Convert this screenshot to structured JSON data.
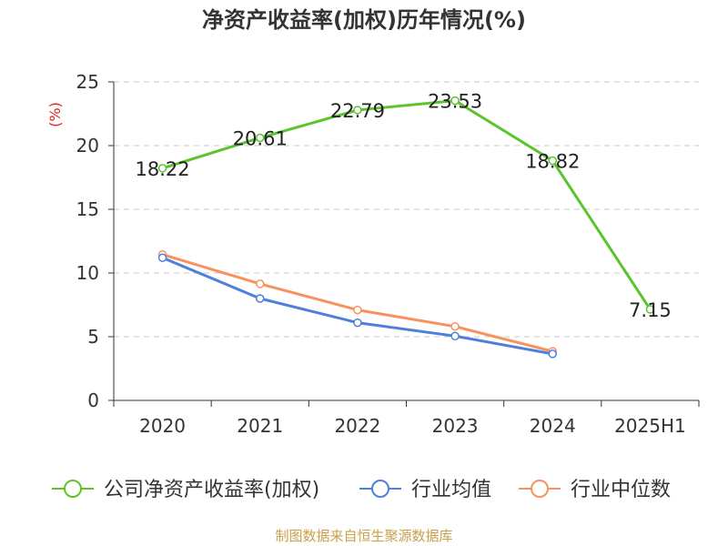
{
  "chart_data": {
    "type": "line",
    "title": "净资产收益率(加权)历年情况(%)",
    "ylabel": "(%)",
    "ylim": [
      0,
      25
    ],
    "yticks": [
      0,
      5,
      10,
      15,
      20,
      25
    ],
    "grid": true,
    "legend_position": "bottom",
    "categories": [
      "2020",
      "2021",
      "2022",
      "2023",
      "2024",
      "2025H1"
    ],
    "series": [
      {
        "name": "公司净资产收益率(加权)",
        "color": "#5cc42b",
        "values": [
          18.22,
          20.61,
          22.79,
          23.53,
          18.82,
          7.15
        ],
        "labels": [
          "18.22",
          "20.61",
          "22.79",
          "23.53",
          "18.82",
          "7.15"
        ]
      },
      {
        "name": "行业均值",
        "color": "#4f7fdc",
        "values": [
          11.2,
          8.0,
          6.1,
          5.05,
          3.65,
          null
        ]
      },
      {
        "name": "行业中位数",
        "color": "#f7915e",
        "values": [
          11.45,
          9.15,
          7.1,
          5.8,
          3.85,
          null
        ]
      }
    ],
    "source": "制图数据来自恒生聚源数据库",
    "colors": {
      "axis": "#333333",
      "grid": "#c8c8c8",
      "unit": "#e02020",
      "source": "#c8a04a"
    }
  }
}
